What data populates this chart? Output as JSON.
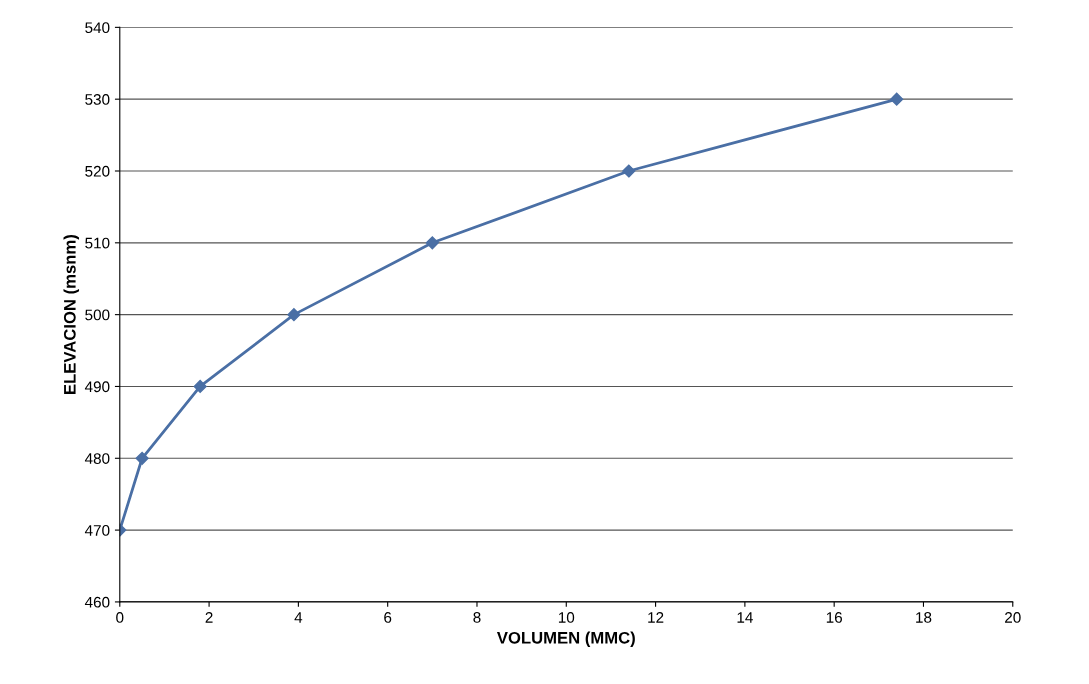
{
  "chart_data": {
    "type": "line",
    "xlabel": "VOLUMEN (MMC)",
    "ylabel": "ELEVACION (msnm)",
    "x": [
      0,
      0.5,
      1.8,
      3.9,
      7.0,
      11.4,
      17.4
    ],
    "series": [
      {
        "color": "#4a6fa5",
        "values": [
          470,
          480,
          490,
          500,
          510,
          520,
          530
        ]
      }
    ],
    "xlim": [
      0,
      20
    ],
    "xticks": [
      0,
      2,
      4,
      6,
      8,
      10,
      12,
      14,
      16,
      18,
      20
    ],
    "ylim": [
      460,
      540
    ],
    "yticks": [
      460,
      470,
      480,
      490,
      500,
      510,
      520,
      530,
      540
    ],
    "grid": "y",
    "marker": "diamond",
    "line_style": "solid"
  }
}
